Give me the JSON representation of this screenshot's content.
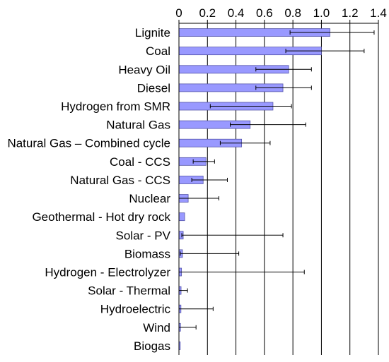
{
  "chart_data": {
    "type": "bar",
    "orientation": "horizontal",
    "axis_position": "top",
    "xlim": [
      0,
      1.4
    ],
    "ticks": [
      0,
      0.2,
      0.4,
      0.6,
      0.8,
      1.0,
      1.2,
      1.4
    ],
    "tick_labels": [
      "0",
      "0.2",
      "0.4",
      "0.6",
      "0.8",
      "1.0",
      "1.2",
      "1.4"
    ],
    "grid": true,
    "bar_color": "#9999ff",
    "bar_edge_color": "#5555aa",
    "categories": [
      "Lignite",
      "Coal",
      "Heavy Oil",
      "Diesel",
      "Hydrogen from SMR",
      "Natural Gas",
      "Natural Gas – Combined cycle",
      "Coal - CCS",
      "Natural Gas - CCS",
      "Nuclear",
      "Geothermal - Hot dry rock",
      "Solar - PV",
      "Biomass",
      "Hydrogen - Electrolyzer",
      "Solar - Thermal",
      "Hydroelectric",
      "Wind",
      "Biogas"
    ],
    "values": [
      1.06,
      1.0,
      0.77,
      0.73,
      0.66,
      0.5,
      0.44,
      0.19,
      0.17,
      0.065,
      0.04,
      0.03,
      0.025,
      0.018,
      0.015,
      0.014,
      0.011,
      0.009
    ],
    "error_low": [
      0.78,
      0.75,
      0.54,
      0.54,
      0.22,
      0.36,
      0.29,
      0.1,
      0.09,
      0.0,
      0.04,
      0.02,
      0.01,
      0.0,
      0.0,
      0.0,
      0.0,
      0.009
    ],
    "error_high": [
      1.37,
      1.3,
      0.93,
      0.93,
      0.79,
      0.89,
      0.64,
      0.25,
      0.34,
      0.28,
      0.04,
      0.73,
      0.42,
      0.88,
      0.06,
      0.24,
      0.12,
      0.009
    ]
  }
}
